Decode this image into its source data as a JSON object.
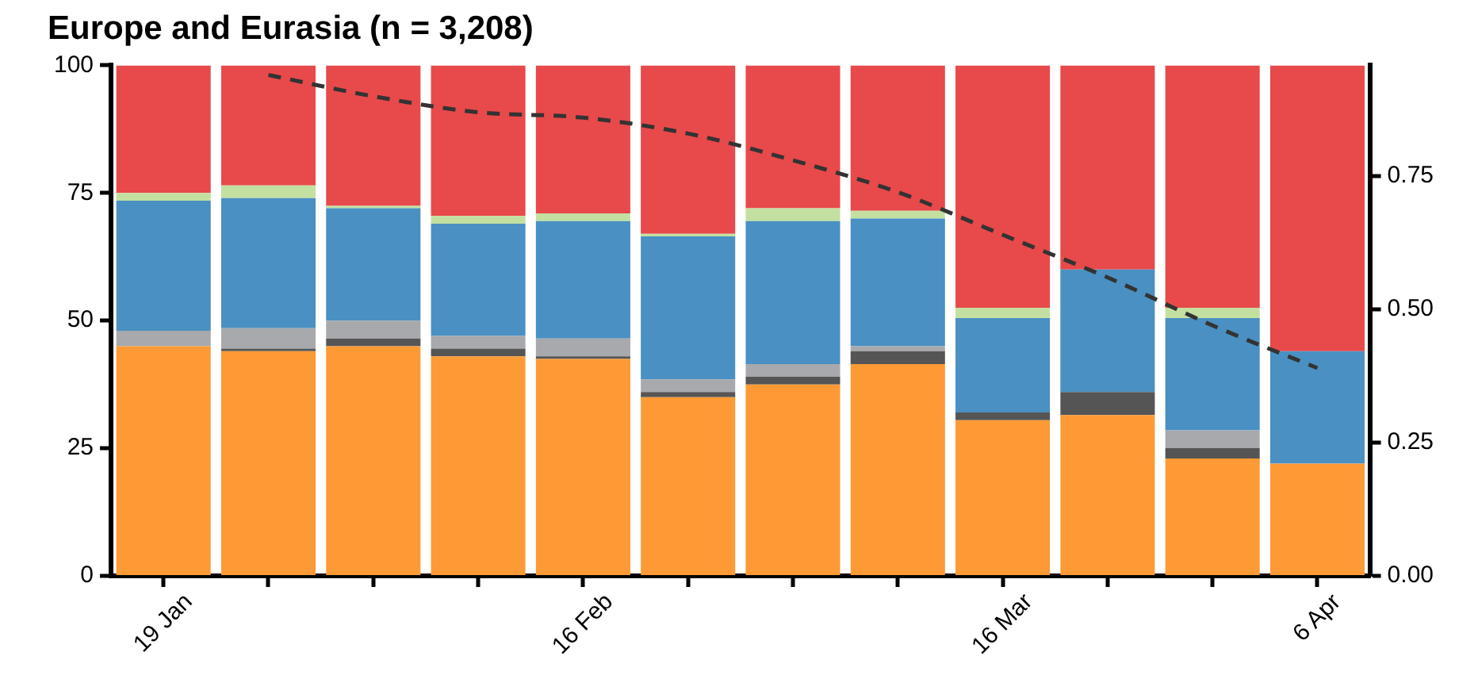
{
  "chart_data": {
    "type": "bar",
    "title": "Europe and Eurasia (n = 3,208)",
    "stacked": true,
    "grid": false,
    "legend": false,
    "categories": [
      "19 Jan",
      null,
      null,
      null,
      "16 Feb",
      null,
      null,
      null,
      "16 Mar",
      null,
      null,
      "6 Apr"
    ],
    "ylim": [
      0,
      100
    ],
    "yticks": [
      0,
      25,
      50,
      75,
      100
    ],
    "y2lim": [
      0,
      0.958
    ],
    "y2ticks": [
      {
        "value": 0,
        "label": "0.00"
      },
      {
        "value": 0.25,
        "label": "0.25"
      },
      {
        "value": 0.5,
        "label": "0.50"
      },
      {
        "value": 0.75,
        "label": "0.75"
      }
    ],
    "series": [
      {
        "color": "#fd9a35",
        "values": [
          45,
          44,
          45,
          43,
          42.5,
          35,
          37.5,
          41.5,
          30.5,
          31.5,
          23,
          22
        ]
      },
      {
        "color": "#555555",
        "values": [
          0,
          0.5,
          1.5,
          1.5,
          0.5,
          1,
          1.5,
          2.5,
          1.5,
          4.5,
          2,
          0
        ]
      },
      {
        "color": "#a7a9ac",
        "values": [
          3,
          4,
          3.5,
          2.5,
          3.5,
          2.5,
          2.5,
          1,
          0,
          0,
          3.5,
          0
        ]
      },
      {
        "color": "#4a90c2",
        "values": [
          25.5,
          25.5,
          22,
          22,
          23,
          28,
          28,
          25,
          18.5,
          24,
          22,
          22
        ]
      },
      {
        "color": "#c3e0a1",
        "values": [
          1.5,
          2.5,
          0.5,
          1.5,
          1.5,
          0.5,
          2.5,
          1.5,
          2,
          0,
          2,
          0
        ]
      },
      {
        "color": "#e8494a",
        "values": [
          25,
          23.5,
          27.5,
          29.5,
          29,
          33,
          28,
          28.5,
          47.5,
          40,
          47.5,
          56
        ]
      },
      {
        "type": "line",
        "axis": "y2",
        "color": "#333333",
        "line_style": "dashed",
        "marker": "none",
        "values": [
          null,
          0.94,
          0.9,
          0.87,
          0.86,
          0.83,
          0.78,
          0.72,
          0.64,
          0.56,
          0.47,
          0.39
        ]
      }
    ]
  }
}
